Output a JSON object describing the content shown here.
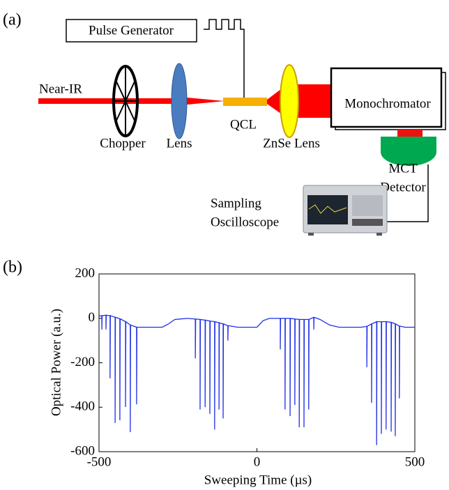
{
  "panel_a": {
    "label": "(a)",
    "pulse_generator": "Pulse Generator",
    "near_ir": "Near-IR",
    "chopper": "Chopper",
    "lens": "Lens",
    "qcl": "QCL",
    "znse_lens": "ZnSe Lens",
    "monochromator": "Monochromator",
    "detector": [
      "MCT",
      "Detector"
    ],
    "oscilloscope": [
      "Sampling",
      "Oscilloscope"
    ]
  },
  "panel_b": {
    "label": "(b)"
  },
  "chart_data": {
    "type": "line",
    "x_label": "Sweeping Time (µs)",
    "y_label": "Optical Power (a.u.)",
    "xlim": [
      -500,
      500
    ],
    "ylim": [
      -600,
      200
    ],
    "xticks": [
      -500,
      0,
      500
    ],
    "yticks": [
      -600,
      -400,
      -200,
      0,
      200
    ],
    "series": [
      {
        "color": "#1f2fe6",
        "x": [
          -500,
          -491,
          -491,
          -490,
          -478,
          -478,
          -477,
          -465,
          -465,
          -464,
          -449,
          -449,
          -448,
          -434,
          -434,
          -433,
          -416,
          -416,
          -415,
          -401,
          -401,
          -400,
          -381,
          -381,
          -380,
          -300,
          -280,
          -260,
          -220,
          -195,
          -195,
          -194,
          -180,
          -180,
          -179,
          -164,
          -164,
          -163,
          -149,
          -149,
          -148,
          -134,
          -134,
          -133,
          -120,
          -120,
          -119,
          -107,
          -107,
          -106,
          -92,
          -92,
          -91,
          -60,
          0,
          20,
          40,
          74,
          74,
          75,
          89,
          89,
          90,
          105,
          105,
          106,
          120,
          120,
          121,
          134,
          134,
          135,
          149,
          149,
          150,
          164,
          164,
          165,
          180,
          180,
          181,
          200,
          230,
          260,
          330,
          348,
          348,
          349,
          363,
          363,
          364,
          379,
          379,
          380,
          394,
          394,
          395,
          409,
          409,
          410,
          425,
          425,
          426,
          438,
          438,
          439,
          451,
          451,
          452,
          470,
          500
        ],
        "values": [
          10,
          12,
          -50,
          12,
          14,
          -50,
          14,
          12,
          -270,
          12,
          5,
          -471,
          5,
          -2,
          -459,
          -2,
          -15,
          -399,
          -15,
          -30,
          -512,
          -30,
          -40,
          -387,
          -40,
          -40,
          -25,
          -5,
          0,
          -3,
          -180,
          -3,
          -5,
          -410,
          -5,
          -8,
          -400,
          -8,
          -12,
          -430,
          -12,
          -15,
          -500,
          -15,
          -20,
          -410,
          -20,
          -25,
          -450,
          -25,
          -33,
          -100,
          -33,
          -40,
          -40,
          -10,
          0,
          0,
          -140,
          0,
          0,
          -410,
          0,
          0,
          -440,
          0,
          -3,
          -390,
          -3,
          -5,
          -490,
          -5,
          -5,
          -490,
          -5,
          -5,
          -410,
          -5,
          5,
          -50,
          5,
          -5,
          -30,
          -40,
          -40,
          -36,
          -220,
          -36,
          -25,
          -380,
          -25,
          -15,
          -570,
          -15,
          -15,
          -520,
          -15,
          -15,
          -500,
          -15,
          -18,
          -510,
          -18,
          -25,
          -530,
          -25,
          -35,
          -360,
          -35,
          -40,
          -40
        ]
      }
    ]
  }
}
